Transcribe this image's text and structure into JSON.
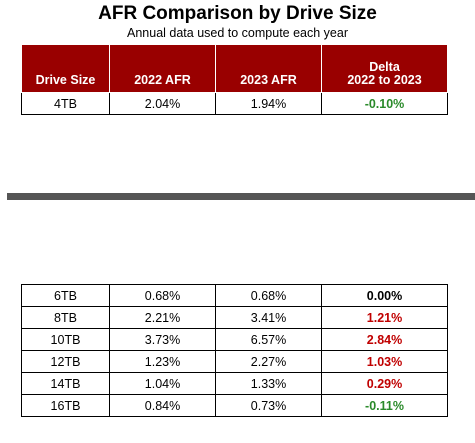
{
  "title": "AFR Comparison by Drive Size",
  "subtitle": "Annual data used to compute each year",
  "headers": {
    "drive_size": "Drive Size",
    "afr_2022": "2022 AFR",
    "afr_2023": "2023 AFR",
    "delta_line1": "Delta",
    "delta_line2": "2022 to 2023"
  },
  "top_rows": [
    {
      "size": "4TB",
      "afr_2022": "2.04%",
      "afr_2023": "1.94%",
      "delta": "-0.10%",
      "trend": "decrease"
    }
  ],
  "bottom_rows": [
    {
      "size": "6TB",
      "afr_2022": "0.68%",
      "afr_2023": "0.68%",
      "delta": "0.00%",
      "trend": "none"
    },
    {
      "size": "8TB",
      "afr_2022": "2.21%",
      "afr_2023": "3.41%",
      "delta": "1.21%",
      "trend": "increase"
    },
    {
      "size": "10TB",
      "afr_2022": "3.73%",
      "afr_2023": "6.57%",
      "delta": "2.84%",
      "trend": "increase"
    },
    {
      "size": "12TB",
      "afr_2022": "1.23%",
      "afr_2023": "2.27%",
      "delta": "1.03%",
      "trend": "increase"
    },
    {
      "size": "14TB",
      "afr_2022": "1.04%",
      "afr_2023": "1.33%",
      "delta": "0.29%",
      "trend": "increase"
    },
    {
      "size": "16TB",
      "afr_2022": "0.84%",
      "afr_2023": "0.73%",
      "delta": "-0.11%",
      "trend": "decrease"
    }
  ],
  "colors": {
    "header_bg": "#990000",
    "decrease": "#2a8a2a",
    "increase": "#c00000",
    "divider": "#555555"
  }
}
